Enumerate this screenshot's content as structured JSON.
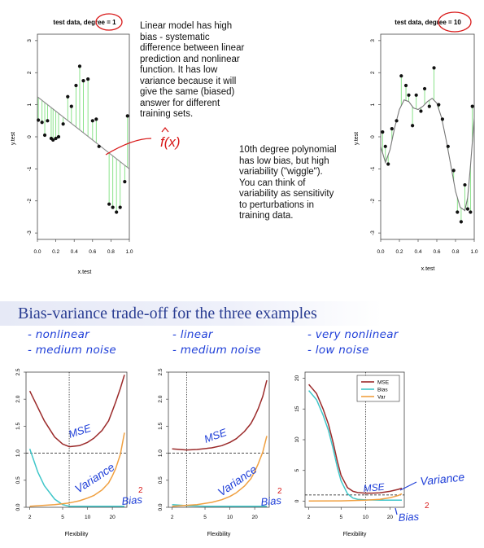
{
  "chart_data": [
    {
      "type": "scatter",
      "title": "test data, degree = 1",
      "xlabel": "x.test",
      "ylabel": "y.test",
      "xlim": [
        0,
        1
      ],
      "ylim": [
        -3.2,
        3.2
      ],
      "xticks": [
        "0.0",
        "0.2",
        "0.4",
        "0.6",
        "0.8",
        "1.0"
      ],
      "yticks": [
        "-3",
        "-2",
        "-1",
        "0",
        "1",
        "2",
        "3"
      ],
      "points": [
        [
          0.01,
          0.52
        ],
        [
          0.05,
          0.45
        ],
        [
          0.08,
          0.05
        ],
        [
          0.11,
          0.5
        ],
        [
          0.15,
          -0.05
        ],
        [
          0.17,
          -0.1
        ],
        [
          0.2,
          -0.05
        ],
        [
          0.23,
          0.0
        ],
        [
          0.28,
          0.4
        ],
        [
          0.33,
          1.25
        ],
        [
          0.37,
          0.95
        ],
        [
          0.42,
          1.6
        ],
        [
          0.46,
          2.2
        ],
        [
          0.5,
          1.75
        ],
        [
          0.55,
          1.8
        ],
        [
          0.6,
          0.5
        ],
        [
          0.64,
          0.55
        ],
        [
          0.67,
          -0.3
        ],
        [
          0.78,
          -2.1
        ],
        [
          0.82,
          -2.2
        ],
        [
          0.86,
          -2.35
        ],
        [
          0.9,
          -2.2
        ],
        [
          0.95,
          -1.4
        ],
        [
          0.98,
          0.65
        ]
      ],
      "fit_line": [
        [
          0.0,
          1.25
        ],
        [
          1.0,
          -1.0
        ]
      ]
    },
    {
      "type": "scatter",
      "title": "test data, degree = 10",
      "xlabel": "x.test",
      "ylabel": "y.test",
      "xlim": [
        0,
        1
      ],
      "ylim": [
        -3.2,
        3.2
      ],
      "xticks": [
        "0.0",
        "0.2",
        "0.4",
        "0.6",
        "0.8",
        "1.0"
      ],
      "yticks": [
        "-3",
        "-2",
        "-1",
        "0",
        "1",
        "2",
        "3"
      ],
      "points": [
        [
          0.02,
          0.15
        ],
        [
          0.05,
          -0.3
        ],
        [
          0.08,
          -0.85
        ],
        [
          0.12,
          0.25
        ],
        [
          0.17,
          0.5
        ],
        [
          0.22,
          1.9
        ],
        [
          0.27,
          1.6
        ],
        [
          0.3,
          1.3
        ],
        [
          0.34,
          0.35
        ],
        [
          0.38,
          1.3
        ],
        [
          0.43,
          0.8
        ],
        [
          0.47,
          1.5
        ],
        [
          0.52,
          0.95
        ],
        [
          0.57,
          2.15
        ],
        [
          0.62,
          1.0
        ],
        [
          0.66,
          0.55
        ],
        [
          0.72,
          -0.3
        ],
        [
          0.78,
          -1.05
        ],
        [
          0.82,
          -2.35
        ],
        [
          0.86,
          -2.65
        ],
        [
          0.9,
          -1.5
        ],
        [
          0.93,
          -2.25
        ],
        [
          0.96,
          -2.35
        ],
        [
          0.98,
          0.95
        ]
      ],
      "fit_curve": [
        [
          0.0,
          -0.3
        ],
        [
          0.05,
          -0.8
        ],
        [
          0.1,
          -0.4
        ],
        [
          0.15,
          0.3
        ],
        [
          0.2,
          0.85
        ],
        [
          0.25,
          1.15
        ],
        [
          0.3,
          1.1
        ],
        [
          0.35,
          0.9
        ],
        [
          0.4,
          0.85
        ],
        [
          0.45,
          0.95
        ],
        [
          0.5,
          1.1
        ],
        [
          0.55,
          1.2
        ],
        [
          0.6,
          1.05
        ],
        [
          0.65,
          0.6
        ],
        [
          0.7,
          -0.1
        ],
        [
          0.75,
          -0.9
        ],
        [
          0.8,
          -1.7
        ],
        [
          0.85,
          -2.2
        ],
        [
          0.9,
          -2.3
        ],
        [
          0.93,
          -1.9
        ],
        [
          0.96,
          -0.9
        ],
        [
          1.0,
          0.6
        ]
      ]
    },
    {
      "type": "line",
      "xlabel": "Flexibility",
      "ylabel": "",
      "x_scale": "log",
      "xlim": [
        1.8,
        30
      ],
      "ylim": [
        0,
        2.5
      ],
      "xticks": [
        "2",
        "5",
        "10",
        "20"
      ],
      "yticks": [
        "0.0",
        "0.5",
        "1.0",
        "1.5",
        "2.0",
        "2.5"
      ],
      "hline": 1.0,
      "vline": 6,
      "series": [
        {
          "color": "#9b2a2a",
          "x": [
            2,
            3,
            4,
            5,
            6,
            8,
            10,
            12,
            15,
            18,
            20,
            22,
            25,
            28
          ],
          "values": [
            2.15,
            1.6,
            1.3,
            1.17,
            1.12,
            1.14,
            1.2,
            1.28,
            1.42,
            1.6,
            1.78,
            1.95,
            2.2,
            2.45
          ]
        },
        {
          "color": "#3fc6c9",
          "x": [
            2,
            2.5,
            3,
            4,
            5,
            6,
            8,
            10,
            15,
            20,
            28
          ],
          "values": [
            1.08,
            0.65,
            0.4,
            0.15,
            0.05,
            0.02,
            0.02,
            0.02,
            0.02,
            0.02,
            0.02
          ]
        },
        {
          "color": "#f0a040",
          "x": [
            2,
            4,
            6,
            8,
            10,
            12,
            15,
            18,
            20,
            22,
            25,
            28
          ],
          "values": [
            0.02,
            0.05,
            0.08,
            0.12,
            0.17,
            0.22,
            0.32,
            0.45,
            0.58,
            0.72,
            0.98,
            1.38
          ]
        }
      ]
    },
    {
      "type": "line",
      "xlabel": "Flexibility",
      "ylabel": "",
      "x_scale": "log",
      "xlim": [
        1.8,
        30
      ],
      "ylim": [
        0,
        2.5
      ],
      "xticks": [
        "2",
        "5",
        "10",
        "20"
      ],
      "yticks": [
        "0.0",
        "0.5",
        "1.0",
        "1.5",
        "2.0",
        "2.5"
      ],
      "hline": 1.0,
      "vline": 3,
      "series": [
        {
          "color": "#9b2a2a",
          "x": [
            2,
            3,
            4,
            6,
            8,
            10,
            12,
            15,
            18,
            20,
            22,
            25,
            28
          ],
          "values": [
            1.08,
            1.06,
            1.07,
            1.1,
            1.14,
            1.2,
            1.27,
            1.4,
            1.55,
            1.68,
            1.82,
            2.05,
            2.35
          ]
        },
        {
          "color": "#3fc6c9",
          "x": [
            2,
            3,
            5,
            10,
            20,
            28
          ],
          "values": [
            0.05,
            0.03,
            0.02,
            0.02,
            0.02,
            0.02
          ]
        },
        {
          "color": "#f0a040",
          "x": [
            2,
            4,
            6,
            8,
            10,
            12,
            15,
            18,
            20,
            22,
            25,
            28
          ],
          "values": [
            0.02,
            0.05,
            0.09,
            0.14,
            0.2,
            0.27,
            0.39,
            0.53,
            0.66,
            0.8,
            1.02,
            1.32
          ]
        }
      ]
    },
    {
      "type": "line",
      "xlabel": "Flexibility",
      "ylabel": "",
      "x_scale": "log",
      "xlim": [
        1.8,
        30
      ],
      "ylim": [
        -1,
        21
      ],
      "xticks": [
        "2",
        "5",
        "10",
        "20"
      ],
      "yticks": [
        "0",
        "5",
        "10",
        "15",
        "20"
      ],
      "hline": 1.0,
      "vline": 10,
      "legend": {
        "position": "top-right",
        "items": [
          "MSE",
          "Bias",
          "Var"
        ]
      },
      "series": [
        {
          "name": "MSE",
          "color": "#9b2a2a",
          "x": [
            2,
            2.5,
            3,
            3.5,
            4,
            4.5,
            5,
            6,
            7,
            8,
            10,
            12,
            15,
            20,
            25,
            28
          ],
          "values": [
            19,
            17.5,
            15,
            12.5,
            9.5,
            6.5,
            4.2,
            2.2,
            1.6,
            1.4,
            1.3,
            1.3,
            1.35,
            1.6,
            1.9,
            2.1
          ]
        },
        {
          "name": "Bias",
          "color": "#3fc6c9",
          "x": [
            2,
            2.5,
            3,
            3.5,
            4,
            4.5,
            5,
            6,
            7,
            8,
            10,
            15,
            20,
            28
          ],
          "values": [
            18,
            16.5,
            14,
            11.5,
            8.5,
            5.5,
            3.3,
            1.2,
            0.5,
            0.3,
            0.2,
            0.15,
            0.15,
            0.15
          ]
        },
        {
          "name": "Var",
          "color": "#f0a040",
          "x": [
            2,
            5,
            10,
            15,
            20,
            25,
            28
          ],
          "values": [
            0.02,
            0.05,
            0.15,
            0.3,
            0.55,
            0.9,
            1.2
          ]
        }
      ]
    }
  ],
  "notes": {
    "degree1": "Linear model has high\nbias - systematic\ndifference between linear\nprediction and nonlinear\nfunction.  It has low\nvariance because it will\ngive the same (biased)\nanswer for different\ntraining sets.",
    "degree10": "10th degree polynomial\nhas low bias, but high\nvariability (\"wiggle\").\nYou can think of\nvariability as sensitivity\nto perturbations in\ntraining data."
  },
  "section": {
    "title": "Bias-variance trade-off for the three examples"
  },
  "handwriting": {
    "f_hat": "f(x)",
    "ex1_line1": "- nonlinear",
    "ex1_line2": "- medium noise",
    "ex2_line1": "- linear",
    "ex2_line2": "- medium noise",
    "ex3_line1": "- very nonlinear",
    "ex3_line2": "- low noise",
    "mse": "MSE",
    "variance": "Variance",
    "bias": "Bias",
    "squared": "2"
  },
  "colors": {
    "handwriting": "#1f3fd8",
    "annotation_red": "#d81818",
    "title": "#2b3e93",
    "fit_segment": "#7ee07e"
  }
}
